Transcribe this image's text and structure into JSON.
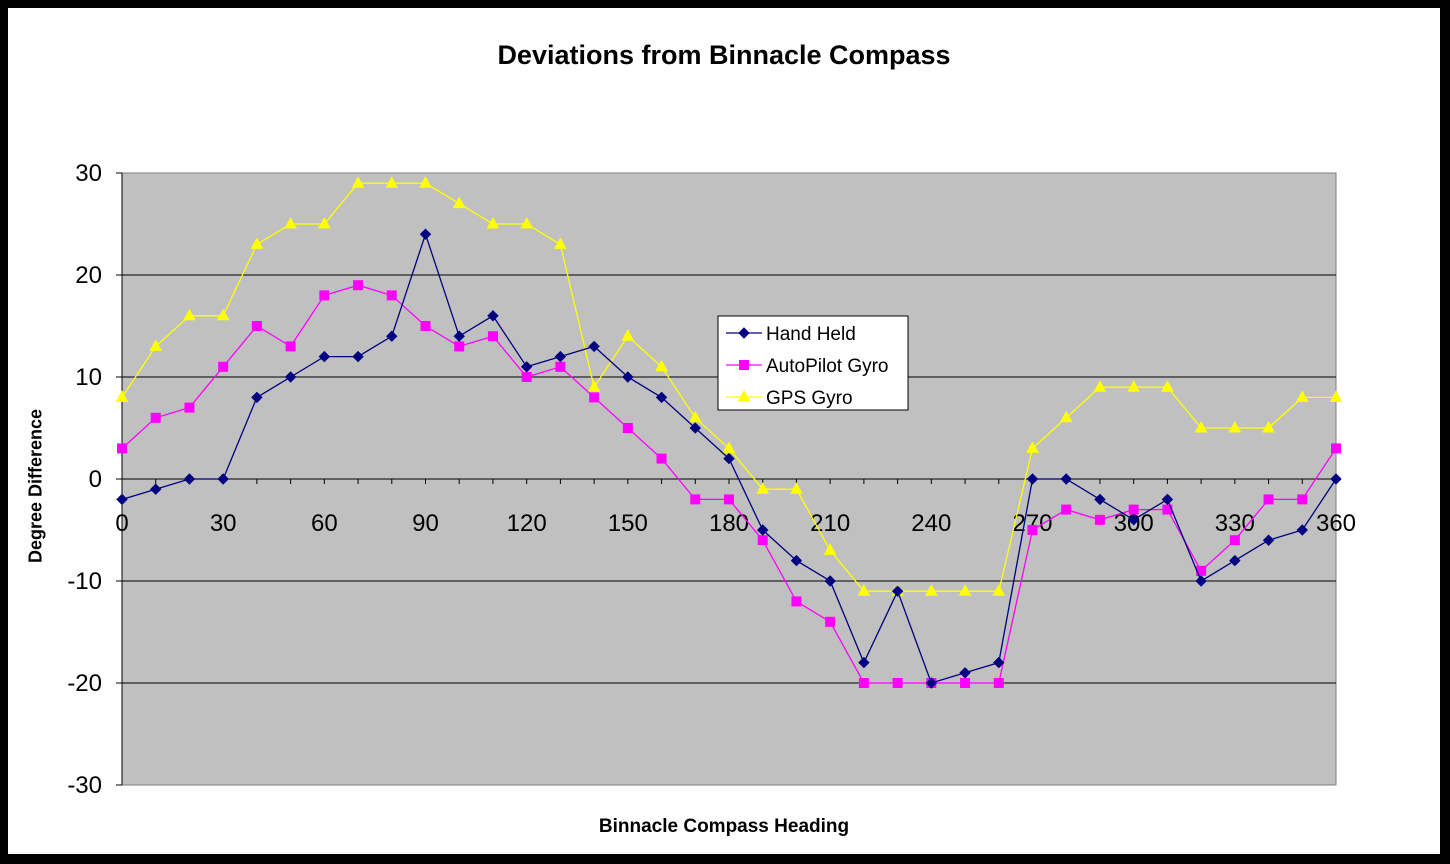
{
  "chart_data": {
    "type": "line",
    "title": "Deviations from Binnacle Compass",
    "xlabel": "Binnacle Compass Heading",
    "ylabel": "Degree Difference",
    "xlim": [
      0,
      360
    ],
    "ylim": [
      -30,
      30
    ],
    "xticks": [
      0,
      30,
      60,
      90,
      120,
      150,
      180,
      210,
      240,
      270,
      300,
      330,
      360
    ],
    "yticks": [
      30,
      20,
      10,
      0,
      -10,
      -20,
      -30
    ],
    "grid": "horizontal",
    "plot_background": "#c0c0c0",
    "legend_position": "center",
    "x": [
      0,
      10,
      20,
      30,
      40,
      50,
      60,
      70,
      80,
      90,
      100,
      110,
      120,
      130,
      140,
      150,
      160,
      170,
      180,
      190,
      200,
      210,
      220,
      230,
      240,
      250,
      260,
      270,
      280,
      290,
      300,
      310,
      320,
      330,
      340,
      350,
      360
    ],
    "series": [
      {
        "name": "Hand Held",
        "color": "#000080",
        "marker": "diamond",
        "values": [
          -2,
          -1,
          0,
          0,
          8,
          10,
          12,
          12,
          14,
          24,
          14,
          16,
          11,
          12,
          13,
          10,
          8,
          5,
          2,
          -5,
          -8,
          -10,
          -18,
          -11,
          -20,
          -19,
          -18,
          0,
          0,
          -2,
          -4,
          -2,
          -10,
          -8,
          -6,
          -5,
          0
        ]
      },
      {
        "name": "AutoPilot Gyro",
        "color": "#ff00ff",
        "marker": "square",
        "values": [
          3,
          6,
          7,
          11,
          15,
          13,
          18,
          19,
          18,
          15,
          13,
          14,
          10,
          11,
          8,
          5,
          2,
          -2,
          -2,
          -6,
          -12,
          -14,
          -20,
          -20,
          -20,
          -20,
          -20,
          -5,
          -3,
          -4,
          -3,
          -3,
          -9,
          -6,
          -2,
          -2,
          3
        ]
      },
      {
        "name": "GPS Gyro",
        "color": "#ffff00",
        "marker": "triangle",
        "values": [
          8,
          13,
          16,
          16,
          23,
          25,
          25,
          29,
          29,
          29,
          27,
          25,
          25,
          23,
          9,
          14,
          11,
          6,
          3,
          -1,
          -1,
          -7,
          -11,
          -11,
          -11,
          -11,
          -11,
          3,
          6,
          9,
          9,
          9,
          5,
          5,
          5,
          8,
          8
        ]
      }
    ]
  }
}
